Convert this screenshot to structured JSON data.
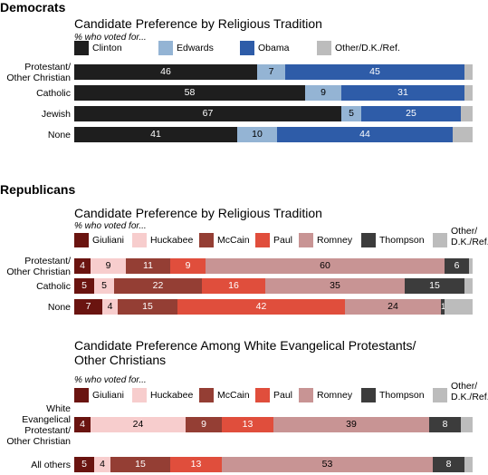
{
  "sections": [
    {
      "heading": "Democrats",
      "charts": [
        {
          "title": "Candidate Preference by Religious Tradition",
          "subtitle": "% who voted for...",
          "legend": [
            {
              "label": "Clinton",
              "color": "#1e1e1e"
            },
            {
              "label": "Edwards",
              "color": "#94b4d4"
            },
            {
              "label": "Obama",
              "color": "#2e5ca8"
            },
            {
              "label": "Other/D.K./Ref.",
              "color": "#bcbcbc"
            }
          ],
          "rows": [
            {
              "label": "Protestant/\nOther Christian",
              "values": [
                46,
                7,
                45,
                2
              ],
              "shown": [
                "46",
                "7",
                "45",
                ""
              ]
            },
            {
              "label": "Catholic",
              "values": [
                58,
                9,
                31,
                2
              ],
              "shown": [
                "58",
                "9",
                "31",
                ""
              ]
            },
            {
              "label": "Jewish",
              "values": [
                67,
                5,
                25,
                3
              ],
              "shown": [
                "67",
                "5",
                "25",
                ""
              ]
            },
            {
              "label": "None",
              "values": [
                41,
                10,
                44,
                5
              ],
              "shown": [
                "41",
                "10",
                "44",
                ""
              ]
            }
          ]
        }
      ]
    },
    {
      "heading": "Republicans",
      "charts": [
        {
          "title": "Candidate Preference by Religious Tradition",
          "subtitle": "% who voted for...",
          "legend": [
            {
              "label": "Giuliani",
              "color": "#6a1410"
            },
            {
              "label": "Huckabee",
              "color": "#f7cdcd"
            },
            {
              "label": "McCain",
              "color": "#943e34"
            },
            {
              "label": "Paul",
              "color": "#e04e3c"
            },
            {
              "label": "Romney",
              "color": "#c89494"
            },
            {
              "label": "Thompson",
              "color": "#3c3c3c"
            },
            {
              "label": "Other/\nD.K./Ref.",
              "color": "#bcbcbc"
            }
          ],
          "rows": [
            {
              "label": "Protestant/\nOther Christian",
              "values": [
                4,
                9,
                11,
                9,
                60,
                6,
                1
              ],
              "shown": [
                "4",
                "9",
                "11",
                "9",
                "60",
                "6",
                ""
              ]
            },
            {
              "label": "Catholic",
              "values": [
                5,
                5,
                22,
                16,
                35,
                15,
                2
              ],
              "shown": [
                "5",
                "5",
                "22",
                "16",
                "35",
                "15",
                ""
              ]
            },
            {
              "label": "None",
              "values": [
                7,
                4,
                15,
                42,
                24,
                1,
                7
              ],
              "shown": [
                "7",
                "4",
                "15",
                "42",
                "24",
                "1",
                ""
              ]
            }
          ]
        },
        {
          "title": "Candidate Preference Among White Evangelical Protestants/\nOther Christians",
          "subtitle": "% who voted for...",
          "legend": [
            {
              "label": "Giuliani",
              "color": "#6a1410"
            },
            {
              "label": "Huckabee",
              "color": "#f7cdcd"
            },
            {
              "label": "McCain",
              "color": "#943e34"
            },
            {
              "label": "Paul",
              "color": "#e04e3c"
            },
            {
              "label": "Romney",
              "color": "#c89494"
            },
            {
              "label": "Thompson",
              "color": "#3c3c3c"
            },
            {
              "label": "Other/\nD.K./Ref.",
              "color": "#bcbcbc"
            }
          ],
          "rows": [
            {
              "label": "White\nEvangelical\nProtestant/\nOther Christian",
              "values": [
                4,
                24,
                9,
                13,
                39,
                8,
                3
              ],
              "shown": [
                "4",
                "24",
                "9",
                "13",
                "39",
                "8",
                ""
              ]
            },
            {
              "label": "All others",
              "values": [
                5,
                4,
                15,
                13,
                53,
                8,
                2
              ],
              "shown": [
                "5",
                "4",
                "15",
                "13",
                "53",
                "8",
                ""
              ]
            }
          ]
        }
      ]
    }
  ],
  "chart_data": [
    {
      "type": "bar",
      "title": "Candidate Preference by Religious Tradition",
      "subtitle": "% who voted for...",
      "categories": [
        "Protestant/Other Christian",
        "Catholic",
        "Jewish",
        "None"
      ],
      "series": [
        {
          "name": "Clinton",
          "values": [
            46,
            58,
            67,
            41
          ]
        },
        {
          "name": "Edwards",
          "values": [
            7,
            9,
            5,
            10
          ]
        },
        {
          "name": "Obama",
          "values": [
            45,
            31,
            25,
            44
          ]
        },
        {
          "name": "Other/D.K./Ref.",
          "values": [
            2,
            2,
            3,
            5
          ]
        }
      ],
      "stacked": true,
      "orientation": "horizontal",
      "xlim": [
        0,
        100
      ]
    },
    {
      "type": "bar",
      "title": "Candidate Preference by Religious Tradition",
      "subtitle": "% who voted for...",
      "categories": [
        "Protestant/Other Christian",
        "Catholic",
        "None"
      ],
      "series": [
        {
          "name": "Giuliani",
          "values": [
            4,
            5,
            7
          ]
        },
        {
          "name": "Huckabee",
          "values": [
            9,
            5,
            4
          ]
        },
        {
          "name": "McCain",
          "values": [
            11,
            22,
            15
          ]
        },
        {
          "name": "Paul",
          "values": [
            9,
            16,
            42
          ]
        },
        {
          "name": "Romney",
          "values": [
            60,
            35,
            24
          ]
        },
        {
          "name": "Thompson",
          "values": [
            6,
            15,
            1
          ]
        },
        {
          "name": "Other/D.K./Ref.",
          "values": [
            1,
            2,
            7
          ]
        }
      ],
      "stacked": true,
      "orientation": "horizontal",
      "xlim": [
        0,
        100
      ]
    },
    {
      "type": "bar",
      "title": "Candidate Preference Among White Evangelical Protestants/Other Christians",
      "subtitle": "% who voted for...",
      "categories": [
        "White Evangelical Protestant/Other Christian",
        "All others"
      ],
      "series": [
        {
          "name": "Giuliani",
          "values": [
            4,
            5
          ]
        },
        {
          "name": "Huckabee",
          "values": [
            24,
            4
          ]
        },
        {
          "name": "McCain",
          "values": [
            9,
            15
          ]
        },
        {
          "name": "Paul",
          "values": [
            13,
            13
          ]
        },
        {
          "name": "Romney",
          "values": [
            39,
            53
          ]
        },
        {
          "name": "Thompson",
          "values": [
            8,
            8
          ]
        },
        {
          "name": "Other/D.K./Ref.",
          "values": [
            3,
            2
          ]
        }
      ],
      "stacked": true,
      "orientation": "horizontal",
      "xlim": [
        0,
        100
      ]
    }
  ]
}
